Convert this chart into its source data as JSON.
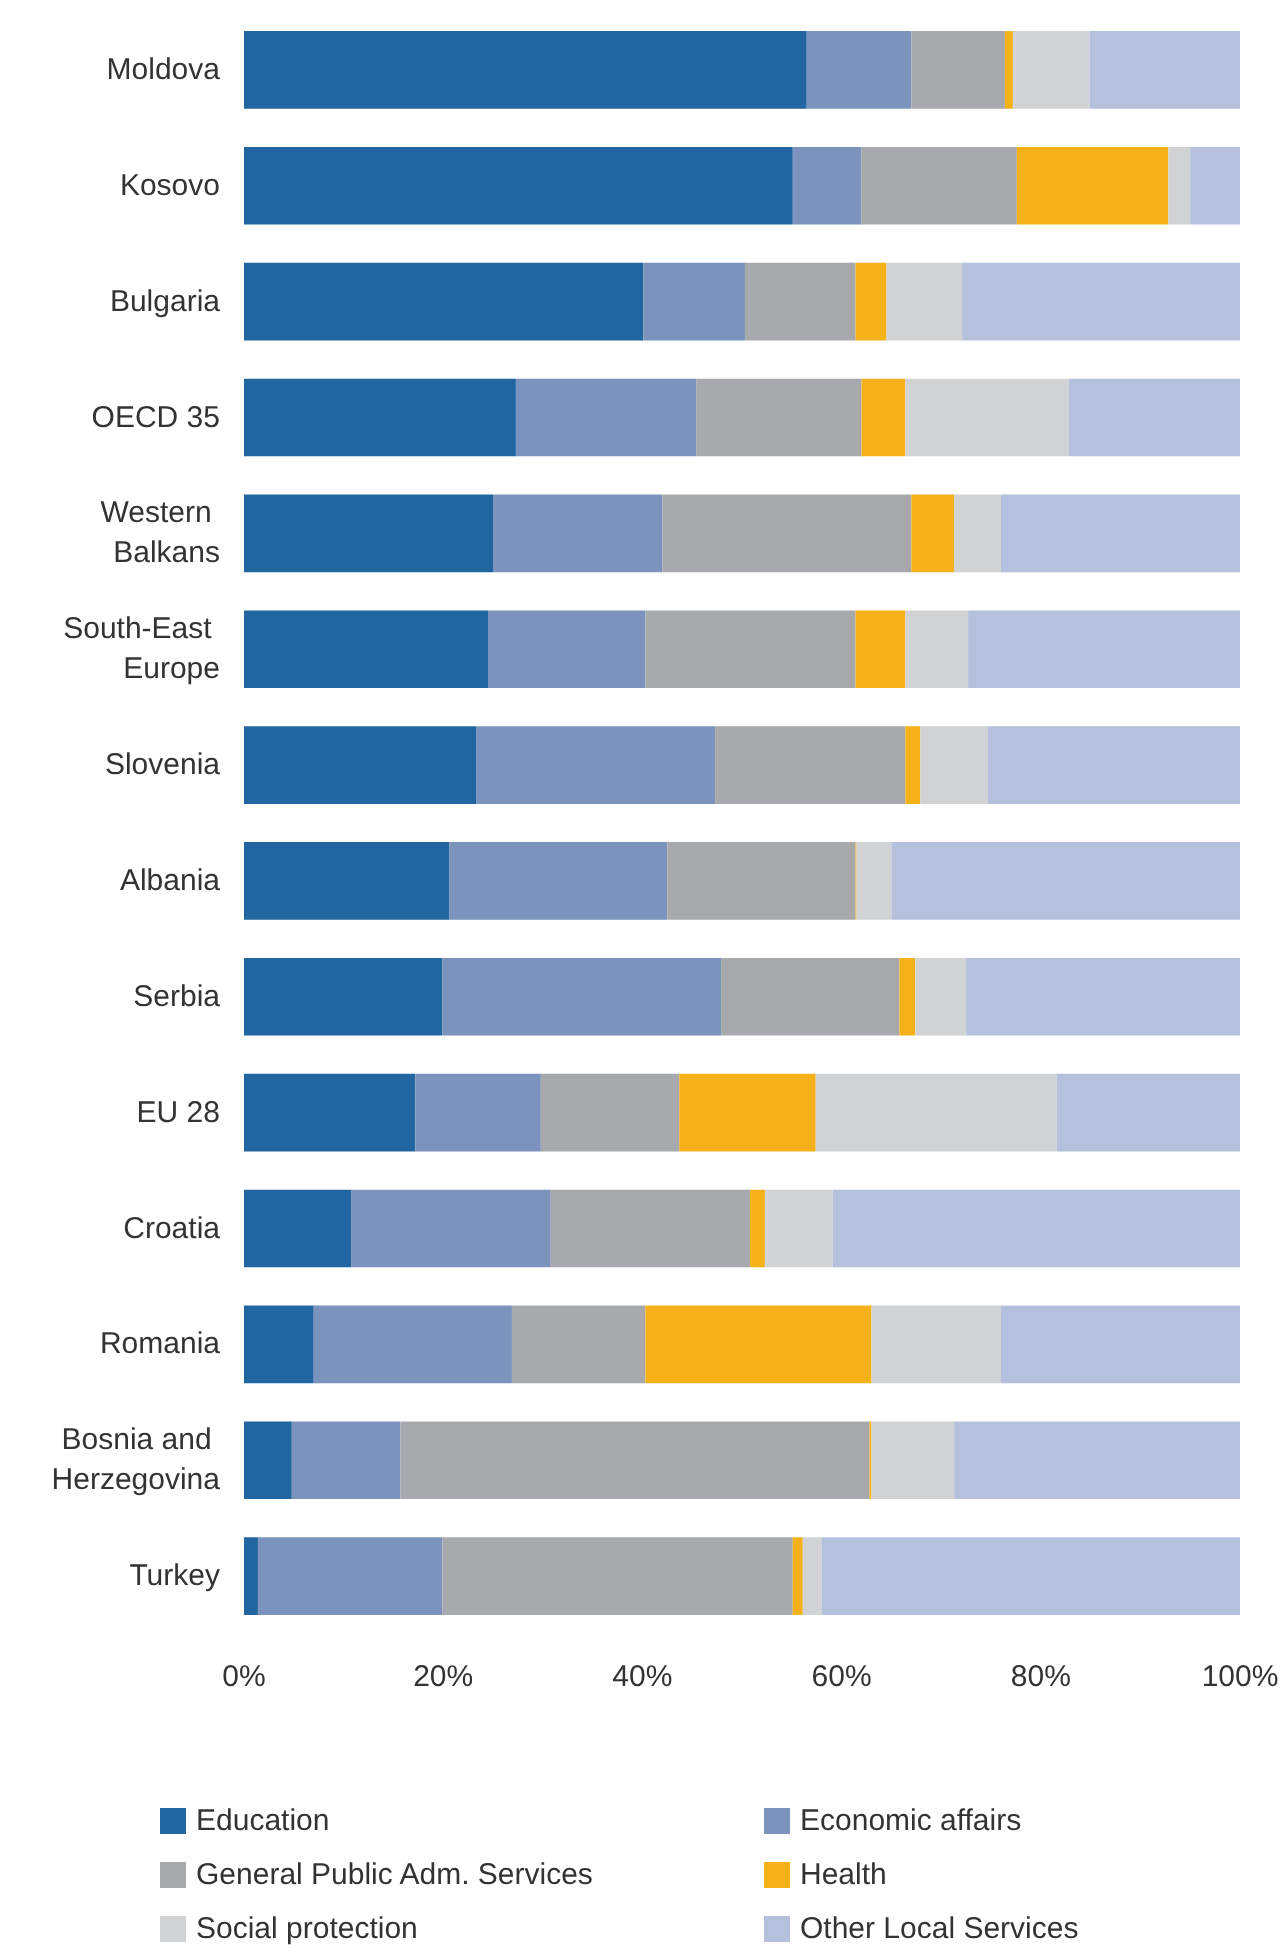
{
  "chart_data": {
    "type": "bar",
    "orientation": "horizontal",
    "stacked": true,
    "categories": [
      "Moldova",
      "Kosovo",
      "Bulgaria",
      "OECD 35",
      "Western Balkans",
      "South-East Europe",
      "Slovenia",
      "Albania",
      "Serbia",
      "EU 28",
      "Croatia",
      "Romania",
      "Bosnia and Herzegovina",
      "Turkey"
    ],
    "series": [
      {
        "name": "Education",
        "color": "#2166a0",
        "values": [
          56.5,
          55.1,
          40.1,
          27.3,
          25.0,
          24.5,
          23.3,
          20.6,
          19.9,
          17.2,
          10.8,
          7.0,
          4.8,
          1.4
        ]
      },
      {
        "name": "Economic affairs",
        "color": "#7b93bd",
        "values": [
          10.5,
          6.9,
          10.2,
          18.1,
          17.0,
          15.8,
          24.0,
          21.9,
          28.0,
          12.6,
          20.0,
          19.9,
          10.9,
          18.5
        ]
      },
      {
        "name": "General Public Adm. Services",
        "color": "#a8a9ad",
        "values": [
          9.4,
          15.6,
          11.1,
          16.6,
          25.0,
          21.1,
          19.1,
          18.9,
          17.9,
          13.9,
          20.0,
          13.4,
          47.1,
          35.2
        ]
      },
      {
        "name": "Health",
        "color": "#f5b11a",
        "values": [
          0.8,
          15.2,
          3.1,
          4.4,
          4.3,
          5.0,
          1.5,
          0.1,
          1.6,
          13.7,
          1.5,
          22.7,
          0.2,
          1.0
        ]
      },
      {
        "name": "Social protection",
        "color": "#d1d2d4",
        "values": [
          7.7,
          2.2,
          7.6,
          16.4,
          4.7,
          6.3,
          6.8,
          3.5,
          5.1,
          24.2,
          6.8,
          13.0,
          8.3,
          1.9
        ]
      },
      {
        "name": "Other Local Services",
        "color": "#b5c1dc",
        "values": [
          15.1,
          5.0,
          27.9,
          17.2,
          24.0,
          27.3,
          25.3,
          35.1,
          27.5,
          18.4,
          40.9,
          24.0,
          28.7,
          42.0
        ]
      }
    ],
    "xlim": [
      0,
      100
    ],
    "xticks": [
      {
        "value": 0,
        "label": "0%"
      },
      {
        "value": 20,
        "label": "20%"
      },
      {
        "value": 40,
        "label": "40%"
      },
      {
        "value": 60,
        "label": "60%"
      },
      {
        "value": 80,
        "label": "80%"
      },
      {
        "value": 100,
        "label": "100%"
      }
    ],
    "grid": false,
    "legend": "bottom"
  }
}
